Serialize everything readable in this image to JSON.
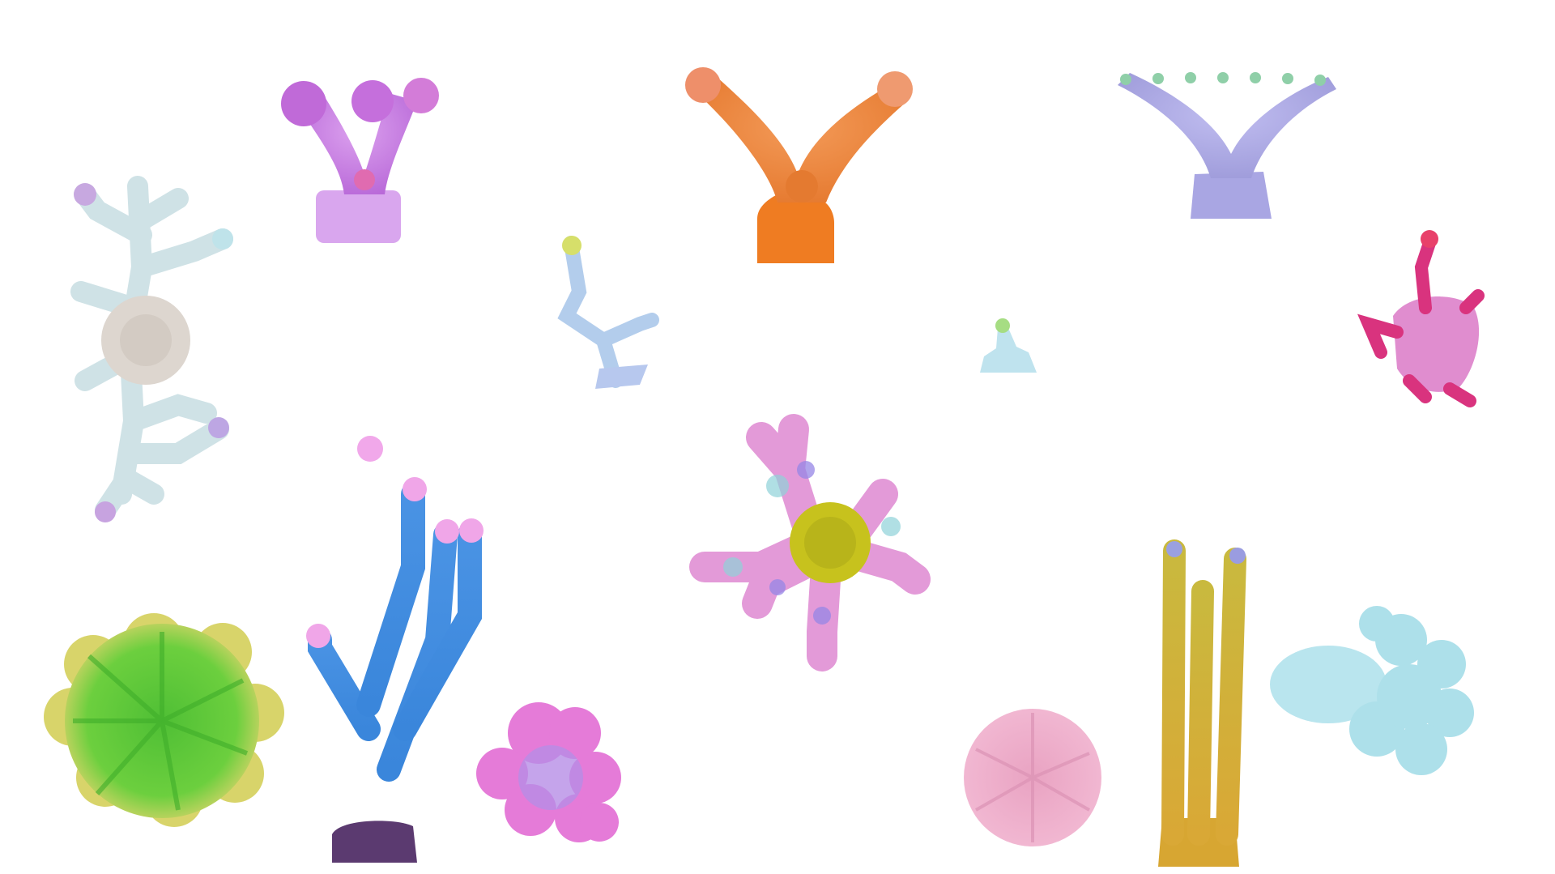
{
  "scene": {
    "background_color": "#ffffff",
    "corals": [
      {
        "name": "branching-coral-beige",
        "shape": "dendritic",
        "colors": [
          "#ddd8d0",
          "#bfe3e8",
          "#c7a3e0"
        ]
      },
      {
        "name": "y-coral-purple",
        "shape": "y-branch",
        "colors": [
          "#c77be0",
          "#e08ad6",
          "#d9b2ee"
        ]
      },
      {
        "name": "y-coral-orange",
        "shape": "y-branch",
        "colors": [
          "#ef8a3c",
          "#e98a7a",
          "#f07a20"
        ]
      },
      {
        "name": "y-coral-lavender",
        "shape": "y-branch",
        "colors": [
          "#a9a6e0",
          "#b8b6ee",
          "#8fc7a4"
        ]
      },
      {
        "name": "small-branch-coral-blue",
        "shape": "sprig",
        "colors": [
          "#a8c4e8",
          "#b9d3ee",
          "#d6df6a"
        ]
      },
      {
        "name": "tiny-coral-cyan",
        "shape": "stub",
        "colors": [
          "#bfe6ee",
          "#a9e08a"
        ]
      },
      {
        "name": "branch-coral-magenta",
        "shape": "irregular",
        "colors": [
          "#d9338a",
          "#e88fc9",
          "#e84a6a"
        ]
      },
      {
        "name": "star-coral-olive",
        "shape": "radial-arms",
        "colors": [
          "#c7c31f",
          "#e59ad9",
          "#8ed8d6",
          "#9a86e8"
        ]
      },
      {
        "name": "finger-coral-blue",
        "shape": "finger",
        "colors": [
          "#3f8ee0",
          "#f0a6e8",
          "#5b3a70"
        ]
      },
      {
        "name": "disc-coral-green",
        "shape": "radial-disc",
        "colors": [
          "#5dc43c",
          "#d6e36a",
          "#e79a86"
        ]
      },
      {
        "name": "rosette-coral-pink",
        "shape": "rosette",
        "colors": [
          "#e678d6",
          "#b98de8",
          "#f0a6d6"
        ]
      },
      {
        "name": "disc-coral-rose",
        "shape": "radial-disc",
        "colors": [
          "#eeb0cc",
          "#e8a2c2"
        ]
      },
      {
        "name": "pillar-coral-gold",
        "shape": "pillars",
        "colors": [
          "#d9b43a",
          "#c7b13a",
          "#9a9ce0"
        ]
      },
      {
        "name": "lobed-coral-aqua",
        "shape": "lobed",
        "colors": [
          "#b8e6ee",
          "#a9dfe8"
        ]
      }
    ]
  }
}
